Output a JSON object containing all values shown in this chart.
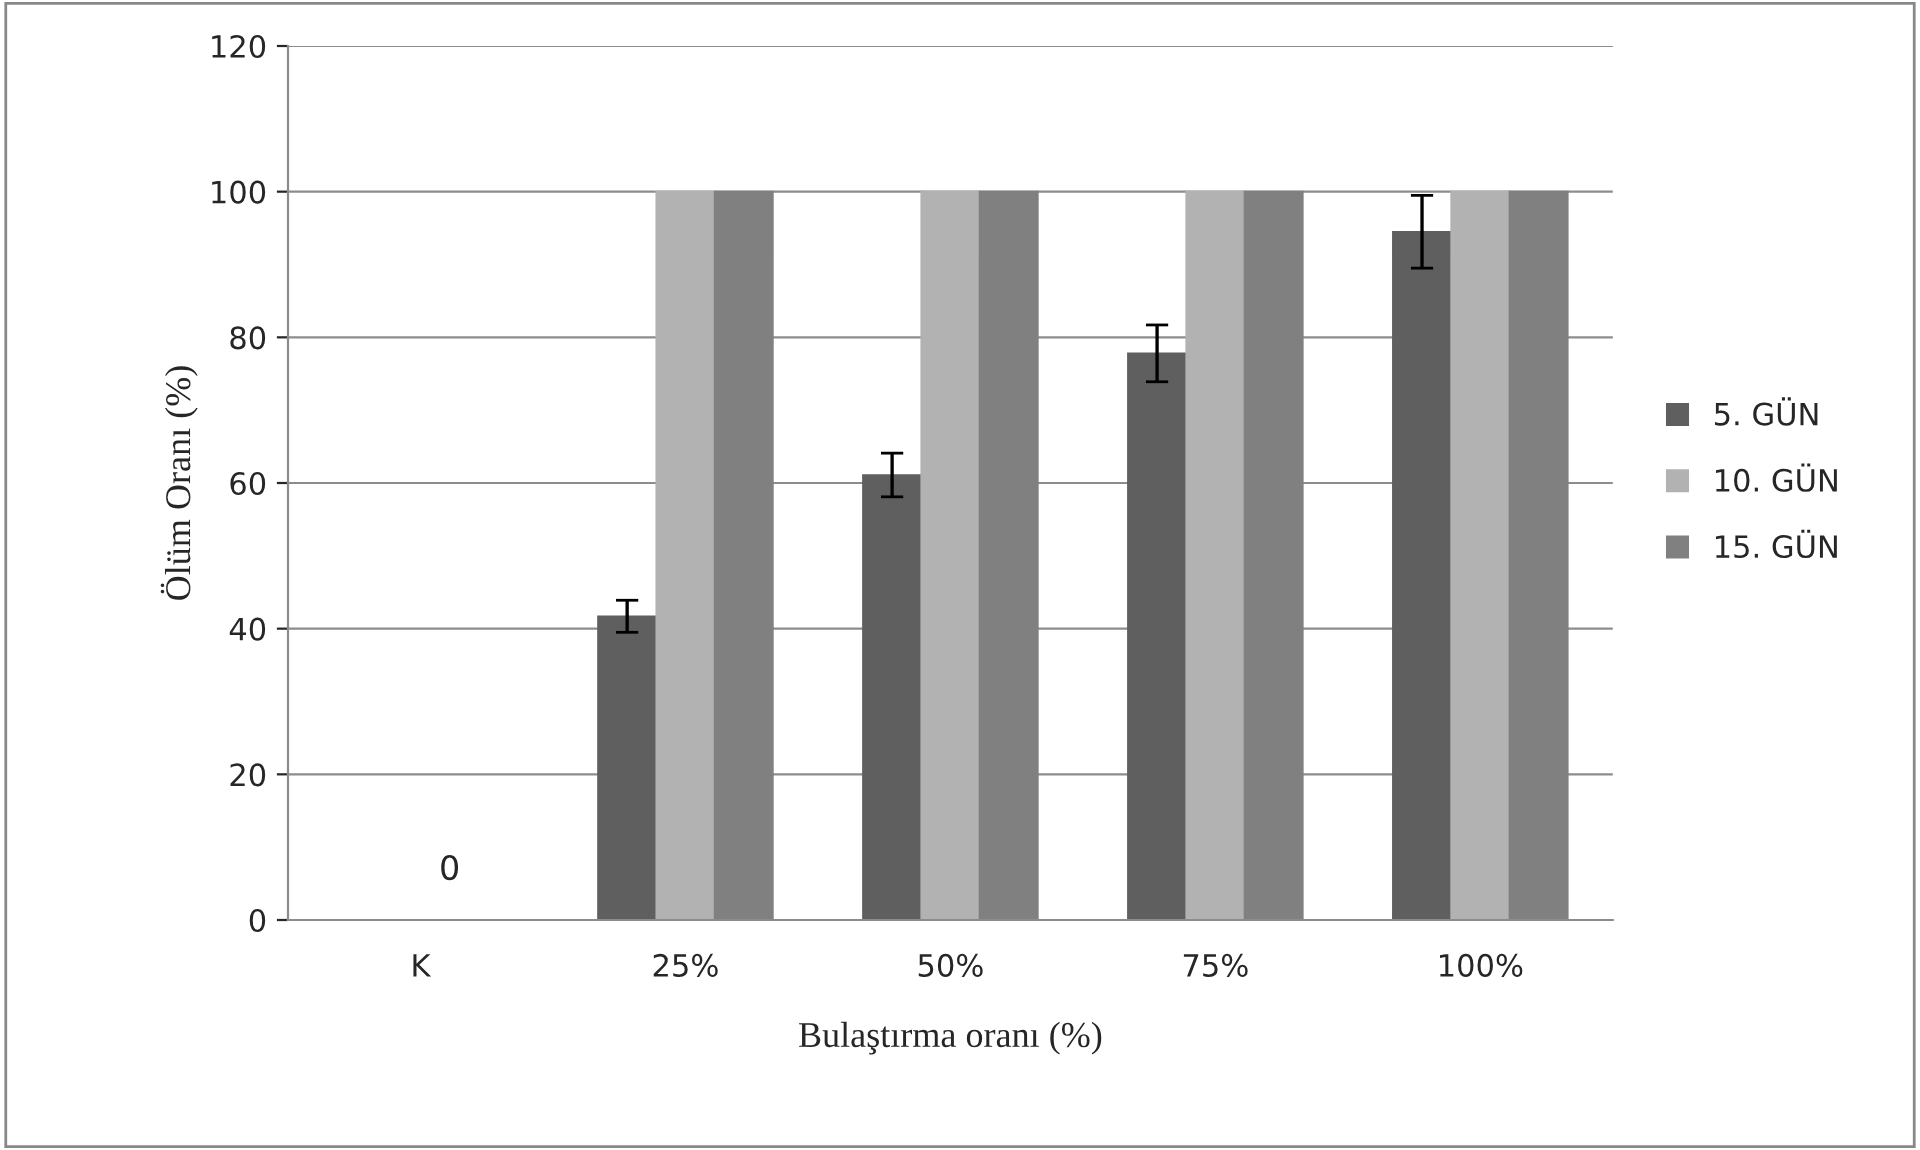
{
  "chart_data": {
    "type": "bar",
    "xlabel": "Bulaştırma oranı (%)",
    "ylabel": "Ölüm Oranı (%)",
    "categories": [
      "K",
      "25%",
      "50%",
      "75%",
      "100%"
    ],
    "series": [
      {
        "name": "5. GÜN",
        "color": "#5f5f5f",
        "values": [
          0,
          41.7,
          61.1,
          77.8,
          94.5
        ],
        "errors": [
          null,
          2.2,
          3,
          3.9,
          5
        ]
      },
      {
        "name": "10. GÜN",
        "color": "#b2b2b2",
        "values": [
          0,
          100,
          100,
          100,
          100
        ]
      },
      {
        "name": "15. GÜN",
        "color": "#808080",
        "values": [
          0,
          100,
          100,
          100,
          100
        ]
      }
    ],
    "annotations": [
      {
        "text": "0",
        "x": "K",
        "y": 0
      }
    ],
    "ylim": [
      0,
      120
    ],
    "yticks": [
      0,
      20,
      40,
      60,
      80,
      100,
      120
    ],
    "grid": "y",
    "legend": "right"
  }
}
